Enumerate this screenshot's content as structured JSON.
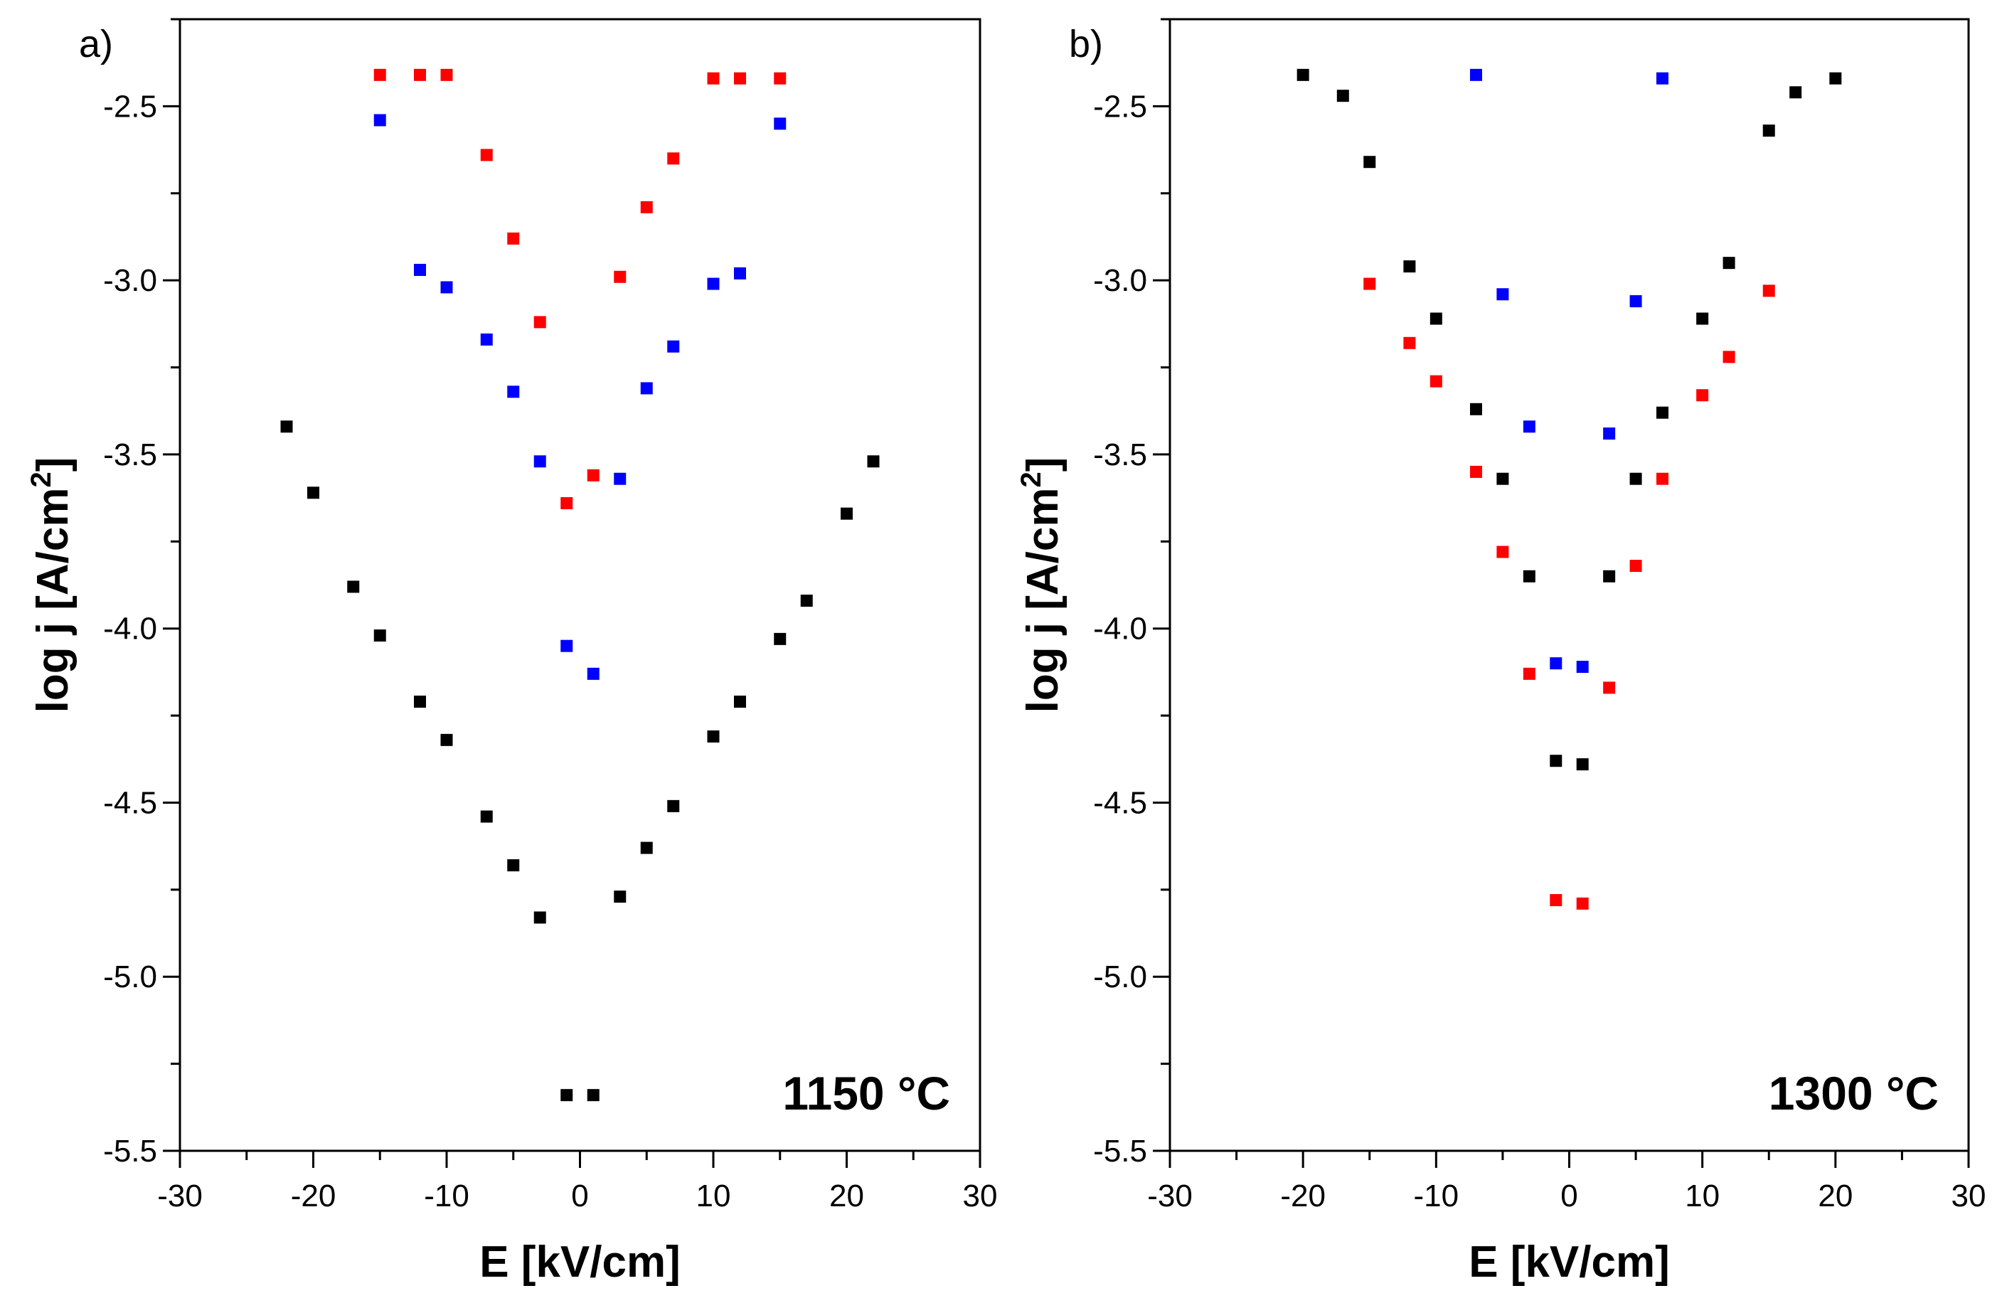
{
  "chart_data": [
    {
      "type": "scatter",
      "panel_label": "a)",
      "annotation": "1150 °C",
      "xlabel": "E [kV/cm]",
      "ylabel": "log j [A/cm",
      "ylabel_sup": "2",
      "ylabel_end": "]",
      "xlim": [
        -30,
        30
      ],
      "ylim": [
        -5.5,
        -2.25
      ],
      "xticks": [
        -30,
        -20,
        -10,
        0,
        10,
        20,
        30
      ],
      "xtick_labels": [
        "-30",
        "-20",
        "-10",
        "0",
        "10",
        "20",
        "30"
      ],
      "yticks": [
        -5.5,
        -5.0,
        -4.5,
        -4.0,
        -3.5,
        -3.0,
        -2.5
      ],
      "ytick_labels": [
        "-5.5",
        "-5.0",
        "-4.5",
        "-4.0",
        "-3.5",
        "-3.0",
        "-2.5"
      ],
      "grid": false,
      "series": [
        {
          "color": "#000000",
          "points": [
            [
              -22,
              -3.42
            ],
            [
              -20,
              -3.61
            ],
            [
              -17,
              -3.88
            ],
            [
              -15,
              -4.02
            ],
            [
              -12,
              -4.21
            ],
            [
              -10,
              -4.32
            ],
            [
              -7,
              -4.54
            ],
            [
              -5,
              -4.68
            ],
            [
              -3,
              -4.83
            ],
            [
              -1,
              -5.34
            ],
            [
              1,
              -5.34
            ],
            [
              3,
              -4.77
            ],
            [
              5,
              -4.63
            ],
            [
              7,
              -4.51
            ],
            [
              10,
              -4.31
            ],
            [
              12,
              -4.21
            ],
            [
              15,
              -4.03
            ],
            [
              17,
              -3.92
            ],
            [
              20,
              -3.67
            ],
            [
              22,
              -3.52
            ]
          ]
        },
        {
          "color": "#0000ff",
          "points": [
            [
              -15,
              -2.54
            ],
            [
              -12,
              -2.97
            ],
            [
              -10,
              -3.02
            ],
            [
              -7,
              -3.17
            ],
            [
              -5,
              -3.32
            ],
            [
              -3,
              -3.52
            ],
            [
              -1,
              -4.05
            ],
            [
              1,
              -4.13
            ],
            [
              3,
              -3.57
            ],
            [
              5,
              -3.31
            ],
            [
              7,
              -3.19
            ],
            [
              10,
              -3.01
            ],
            [
              12,
              -2.98
            ],
            [
              15,
              -2.55
            ]
          ]
        },
        {
          "color": "#ff0000",
          "points": [
            [
              -15,
              -2.41
            ],
            [
              -12,
              -2.41
            ],
            [
              -10,
              -2.41
            ],
            [
              -7,
              -2.64
            ],
            [
              -5,
              -2.88
            ],
            [
              -3,
              -3.12
            ],
            [
              -1,
              -3.64
            ],
            [
              1,
              -3.56
            ],
            [
              3,
              -2.99
            ],
            [
              5,
              -2.79
            ],
            [
              7,
              -2.65
            ],
            [
              10,
              -2.42
            ],
            [
              12,
              -2.42
            ],
            [
              15,
              -2.42
            ]
          ]
        }
      ]
    },
    {
      "type": "scatter",
      "panel_label": "b)",
      "annotation": "1300 °C",
      "xlabel": "E [kV/cm]",
      "ylabel": "log j [A/cm",
      "ylabel_sup": "2",
      "ylabel_end": "]",
      "xlim": [
        -30,
        30
      ],
      "ylim": [
        -5.5,
        -2.25
      ],
      "xticks": [
        -30,
        -20,
        -10,
        0,
        10,
        20,
        30
      ],
      "xtick_labels": [
        "-30",
        "-20",
        "-10",
        "0",
        "10",
        "20",
        "30"
      ],
      "yticks": [
        -5.5,
        -5.0,
        -4.5,
        -4.0,
        -3.5,
        -3.0,
        -2.5
      ],
      "ytick_labels": [
        "-5.5",
        "-5.0",
        "-4.5",
        "-4.0",
        "-3.5",
        "-3.0",
        "-2.5"
      ],
      "grid": false,
      "series": [
        {
          "color": "#000000",
          "points": [
            [
              -20,
              -2.41
            ],
            [
              -17,
              -2.47
            ],
            [
              -15,
              -2.66
            ],
            [
              -12,
              -2.96
            ],
            [
              -10,
              -3.11
            ],
            [
              -7,
              -3.37
            ],
            [
              -5,
              -3.57
            ],
            [
              -3,
              -3.85
            ],
            [
              -1,
              -4.38
            ],
            [
              1,
              -4.39
            ],
            [
              3,
              -3.85
            ],
            [
              5,
              -3.57
            ],
            [
              7,
              -3.38
            ],
            [
              10,
              -3.11
            ],
            [
              12,
              -2.95
            ],
            [
              15,
              -2.57
            ],
            [
              17,
              -2.46
            ],
            [
              20,
              -2.42
            ]
          ]
        },
        {
          "color": "#0000ff",
          "points": [
            [
              -7,
              -2.41
            ],
            [
              -5,
              -3.04
            ],
            [
              -3,
              -3.42
            ],
            [
              -1,
              -4.1
            ],
            [
              1,
              -4.11
            ],
            [
              3,
              -3.44
            ],
            [
              5,
              -3.06
            ],
            [
              7,
              -2.42
            ]
          ]
        },
        {
          "color": "#ff0000",
          "points": [
            [
              -15,
              -3.01
            ],
            [
              -12,
              -3.18
            ],
            [
              -10,
              -3.29
            ],
            [
              -7,
              -3.55
            ],
            [
              -5,
              -3.78
            ],
            [
              -3,
              -4.13
            ],
            [
              -1,
              -4.78
            ],
            [
              1,
              -4.79
            ],
            [
              3,
              -4.17
            ],
            [
              5,
              -3.82
            ],
            [
              7,
              -3.57
            ],
            [
              10,
              -3.33
            ],
            [
              12,
              -3.22
            ],
            [
              15,
              -3.03
            ]
          ]
        }
      ]
    }
  ]
}
